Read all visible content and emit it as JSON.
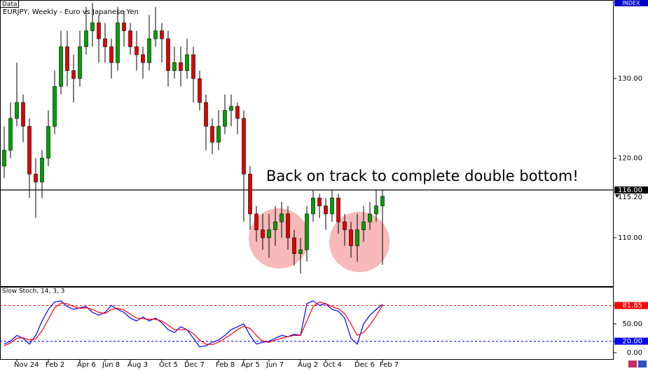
{
  "data_tag": "Data",
  "index_tag": "INDEX",
  "chart_data": [
    {
      "type": "candlestick",
      "title": "EURJPY, Weekly - Euro vs Japanese Yen",
      "annotation": "Back on track to complete double bottom!",
      "up_color": "#00a000",
      "down_color": "#e00000",
      "ylim": [
        103.92,
        139.87
      ],
      "yticks": [
        {
          "value": 130,
          "label": "130.00"
        },
        {
          "value": 120,
          "label": "120.00"
        },
        {
          "value": 110,
          "label": "110.00"
        }
      ],
      "hline": {
        "value": 116,
        "label": "116.00"
      },
      "price_marker": {
        "value": 115.2,
        "label": "115.20"
      },
      "categories": [
        null,
        null,
        "Nov 24",
        null,
        null,
        null,
        null,
        "Feb 2",
        null,
        null,
        null,
        null,
        "Apr 6",
        null,
        null,
        null,
        "Jun 8",
        null,
        null,
        null,
        "Aug 3",
        null,
        null,
        null,
        null,
        "Oct 5",
        null,
        null,
        null,
        "Dec 7",
        null,
        null,
        null,
        null,
        "Feb 8",
        null,
        null,
        null,
        "Apr 5",
        null,
        null,
        null,
        "Jun 7",
        null,
        null,
        null,
        null,
        "Aug 2",
        null,
        null,
        null,
        "Oct 4",
        null,
        null,
        null,
        null,
        "Dec 6",
        null,
        null,
        null,
        "Feb 7"
      ],
      "open": [
        119,
        121,
        125,
        127,
        124,
        118,
        117,
        120,
        124,
        129,
        134,
        131,
        130,
        134,
        136,
        137,
        135,
        134,
        132,
        137,
        136,
        134,
        133,
        132,
        135,
        136,
        135,
        131,
        132,
        131,
        133,
        130,
        127,
        124,
        122,
        124,
        126,
        126.5,
        125,
        118,
        113,
        111,
        110,
        111,
        112,
        113,
        110,
        108,
        108.5,
        113,
        115,
        114,
        113,
        115,
        112,
        111,
        109,
        111,
        112,
        113,
        114
      ],
      "high": [
        124,
        127,
        132,
        128,
        125,
        120,
        121,
        126,
        131,
        136,
        136,
        133,
        136,
        139,
        139.5,
        138,
        137,
        135,
        139,
        138.5,
        137,
        136,
        134,
        138,
        139,
        137,
        136,
        134,
        134,
        135,
        134,
        131,
        128,
        125,
        126,
        128,
        128,
        127,
        126,
        119,
        114,
        113,
        113,
        114,
        114.5,
        114,
        111,
        110,
        114,
        116,
        115.5,
        115,
        116,
        115.5,
        113,
        112,
        113,
        114,
        114.5,
        116,
        116
      ],
      "low": [
        117.5,
        120,
        124,
        122,
        115,
        112.5,
        115,
        119,
        123,
        128,
        129,
        127,
        129,
        133,
        134,
        132,
        132,
        130,
        131,
        134,
        133,
        131,
        130,
        131,
        134,
        132,
        129,
        130,
        129,
        130,
        127,
        126,
        121,
        120.5,
        121,
        123,
        124,
        123,
        112,
        111,
        109.5,
        108.5,
        107.5,
        109,
        110,
        108.5,
        106.5,
        105.5,
        107,
        112,
        112.5,
        111,
        112,
        110.5,
        109,
        107.5,
        107,
        109.5,
        111,
        112,
        106.6
      ],
      "close": [
        121,
        125,
        127,
        124,
        118,
        117,
        120,
        124,
        129,
        134,
        131,
        130,
        134,
        136,
        137,
        135,
        134,
        132,
        137,
        136,
        134,
        133,
        132,
        135,
        136,
        135,
        131,
        132,
        131,
        133,
        130,
        127,
        124,
        122,
        124,
        126,
        126.5,
        125,
        118,
        113,
        111,
        110,
        111,
        112,
        113,
        110,
        108,
        108.5,
        113,
        115,
        114,
        113,
        115,
        112,
        111,
        109,
        111,
        112,
        113,
        114,
        115.2
      ]
    },
    {
      "type": "line",
      "title": "Slow Stoch, 14, 3, 3",
      "ylim": [
        -11,
        113
      ],
      "yticks": [
        {
          "value": 81.85,
          "label": "81.85"
        },
        {
          "value": 50,
          "label": "50.00"
        },
        {
          "value": 20,
          "label": "20.00"
        },
        {
          "value": 0,
          "label": "0.00"
        }
      ],
      "reference_lines": [
        {
          "value": 81.85,
          "color": "#ff0000"
        },
        {
          "value": 20,
          "color": "#0000ff"
        }
      ],
      "series": [
        {
          "color": "#0000ff",
          "values": [
            15,
            20,
            30,
            25,
            15,
            30,
            55,
            75,
            88,
            90,
            80,
            75,
            78,
            80,
            70,
            65,
            70,
            82,
            75,
            70,
            60,
            55,
            62,
            55,
            60,
            52,
            40,
            35,
            45,
            40,
            25,
            10,
            12,
            18,
            22,
            30,
            40,
            45,
            50,
            30,
            15,
            18,
            20,
            25,
            30,
            28,
            32,
            30,
            85,
            90,
            82,
            85,
            75,
            72,
            60,
            25,
            15,
            50,
            65,
            75,
            84
          ]
        },
        {
          "color": "#ff0000",
          "values": [
            12,
            17,
            25,
            26,
            22,
            24,
            38,
            58,
            78,
            86,
            85,
            80,
            77,
            78,
            75,
            70,
            68,
            75,
            77,
            74,
            67,
            60,
            59,
            58,
            58,
            55,
            48,
            40,
            40,
            40,
            33,
            22,
            15,
            14,
            18,
            25,
            32,
            40,
            46,
            42,
            30,
            20,
            18,
            22,
            25,
            28,
            30,
            30,
            55,
            80,
            88,
            85,
            80,
            76,
            68,
            50,
            30,
            35,
            48,
            64,
            81.85
          ]
        }
      ]
    }
  ]
}
